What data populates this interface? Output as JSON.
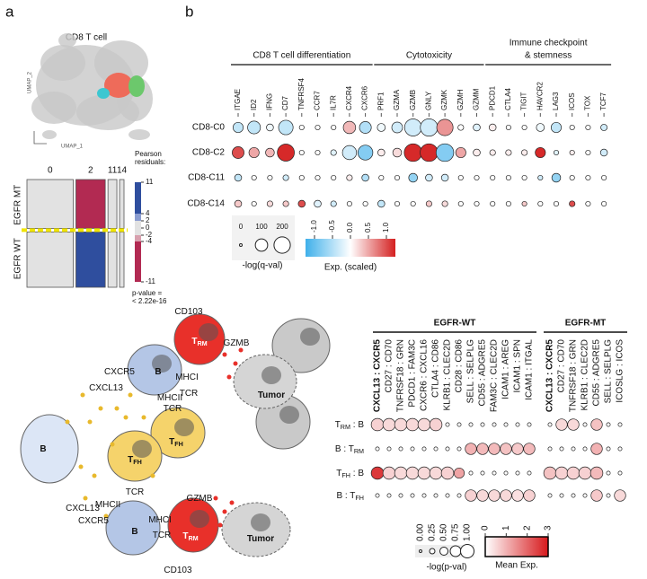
{
  "panel_a": {
    "label": "a",
    "umap": {
      "title": "CD8 T cell",
      "xlabel": "UMAP_1",
      "ylabel": "UMAP_2"
    },
    "mosaic": {
      "columns": [
        {
          "label": "0",
          "width": 0.52,
          "mt_share": 0.47,
          "residual_mt": 0,
          "residual_wt": 0
        },
        {
          "label": "2",
          "width": 0.33,
          "mt_share": 0.47,
          "residual_mt": -11,
          "residual_wt": 11
        },
        {
          "label": "11",
          "width": 0.1,
          "mt_share": 0.47,
          "residual_mt": 0,
          "residual_wt": 0
        },
        {
          "label": "14",
          "width": 0.05,
          "mt_share": 0.47,
          "residual_mt": 0,
          "residual_wt": 0
        }
      ],
      "rows": [
        "EGFR MT",
        "EGFR WT"
      ],
      "legend_title": [
        "Pearson",
        "residuals:"
      ],
      "legend_ticks": [
        11,
        4,
        2,
        0,
        -2,
        -4,
        -11
      ],
      "p_value": [
        "p-value =",
        "< 2.22e-16"
      ]
    }
  },
  "panel_b": {
    "label": "b",
    "groups": [
      {
        "title": [
          "CD8 T cell differentiation"
        ],
        "genes": [
          "ITGAE",
          "ID2",
          "IFNG",
          "CD7",
          "TNFRSF4",
          "CCR7",
          "IL7R",
          "CXCR4",
          "CXCR6"
        ]
      },
      {
        "title": [
          "Cytotoxicity"
        ],
        "genes": [
          "PRF1",
          "GZMA",
          "GZMB",
          "GNLY",
          "GZMK",
          "GZMH",
          "GZMM"
        ]
      },
      {
        "title": [
          "Immune checkpoint",
          "& stemness"
        ],
        "genes": [
          "PDCD1",
          "CTLA4",
          "TIGIT",
          "HAVCR2",
          "LAG3",
          "ICOS",
          "TOX",
          "TCF7"
        ]
      }
    ],
    "rows": [
      {
        "name": "CD8-C0",
        "size": [
          60,
          110,
          20,
          150,
          5,
          5,
          5,
          100,
          90,
          30,
          70,
          220,
          230,
          200,
          10,
          20,
          20,
          5,
          5,
          30,
          60,
          5,
          5,
          15
        ],
        "exp": [
          -0.4,
          -0.4,
          -0.1,
          -0.4,
          0,
          0,
          0,
          0.4,
          -0.5,
          -0.1,
          -0.3,
          -0.3,
          -0.3,
          0.6,
          0,
          -0.2,
          0.1,
          0,
          0,
          -0.1,
          -0.4,
          0,
          0,
          -0.3
        ]
      },
      {
        "name": "CD8-C2",
        "size": [
          90,
          60,
          40,
          220,
          5,
          5,
          10,
          140,
          160,
          20,
          40,
          240,
          240,
          240,
          60,
          20,
          10,
          10,
          10,
          60,
          5,
          5,
          5,
          20
        ],
        "exp": [
          1.0,
          0.5,
          0.4,
          1.2,
          0,
          0,
          -0.2,
          -0.3,
          -0.8,
          0.1,
          0.2,
          1.2,
          1.2,
          -0.8,
          0.5,
          0.1,
          0.1,
          0.1,
          0.1,
          1.2,
          -0.2,
          0.1,
          0,
          -0.3
        ]
      },
      {
        "name": "CD8-C11",
        "size": [
          20,
          5,
          5,
          10,
          5,
          5,
          5,
          10,
          20,
          5,
          5,
          40,
          20,
          20,
          5,
          5,
          5,
          5,
          5,
          5,
          40,
          5,
          5,
          5
        ],
        "exp": [
          -0.4,
          0,
          0,
          -0.3,
          0,
          0,
          0,
          0.1,
          -0.5,
          0,
          0,
          -0.7,
          -0.3,
          -0.3,
          0,
          0,
          0,
          0,
          0,
          -0.3,
          -0.7,
          0,
          0,
          0
        ]
      },
      {
        "name": "CD8-C14",
        "size": [
          20,
          5,
          10,
          10,
          20,
          20,
          10,
          5,
          5,
          20,
          5,
          5,
          10,
          10,
          5,
          5,
          5,
          5,
          5,
          5,
          5,
          10,
          5,
          5
        ],
        "exp": [
          0.3,
          0,
          0.2,
          0.3,
          1.0,
          -0.2,
          -0.3,
          0,
          0,
          -0.4,
          0,
          0,
          0.3,
          0.2,
          0,
          0,
          0,
          0,
          0.3,
          0,
          0,
          1.0,
          0,
          0
        ]
      }
    ],
    "size_legend": {
      "title": "-log(q-val)",
      "values": [
        0,
        100,
        200
      ],
      "lim": [
        0,
        250
      ]
    },
    "color_legend": {
      "title": "Exp. (scaled)",
      "lim": [
        -1.25,
        1.25
      ],
      "ticks": [
        {
          "value": -1,
          "label": "-1.0"
        },
        -0.5,
        {
          "value": 0,
          "label": "0.0"
        },
        0.5,
        {
          "value": 1,
          "label": "1.0"
        }
      ]
    }
  },
  "panel_c": {
    "diagram": {
      "labels": [
        [
          {
            "text": "T"
          },
          {
            "text": "RM",
            "sub": true
          }
        ],
        [
          {
            "text": "CD103"
          }
        ],
        [
          {
            "text": "GZMB"
          }
        ],
        [
          {
            "text": "B"
          }
        ],
        [
          {
            "text": "MHCI"
          }
        ],
        [
          {
            "text": "TCR"
          }
        ],
        [
          {
            "text": "CXCR5"
          }
        ],
        [
          {
            "text": "MHCII"
          }
        ],
        [
          {
            "text": "TCR"
          }
        ],
        [
          {
            "text": "CXCL13"
          }
        ],
        [
          {
            "text": "T"
          },
          {
            "text": "FH",
            "sub": true
          }
        ],
        [
          {
            "text": "Tumor"
          }
        ],
        [
          {
            "text": "B"
          }
        ],
        [
          {
            "text": "T"
          },
          {
            "text": "FH",
            "sub": true
          }
        ],
        [
          {
            "text": "CXCL13"
          }
        ],
        [
          {
            "text": "TCR"
          }
        ],
        [
          {
            "text": "MHCII"
          }
        ],
        [
          {
            "text": "CXCR5"
          }
        ],
        [
          {
            "text": "B"
          }
        ],
        [
          {
            "text": "MHCI"
          }
        ],
        [
          {
            "text": "TCR"
          }
        ],
        [
          {
            "text": "GZMB"
          }
        ],
        [
          {
            "text": "T"
          },
          {
            "text": "RM",
            "sub": true
          }
        ],
        [
          {
            "text": "CD103"
          }
        ],
        [
          {
            "text": "Tumor"
          }
        ]
      ]
    },
    "dotplot": {
      "groups": [
        {
          "title": "EGFR-WT",
          "pairs": [
            "CXCL13 : CXCR5",
            "CD27 : CD70",
            "TNFRSF18 : GRN",
            "PDCD1 : FAM3C",
            "CXCR6 : CXCL16",
            "CTLA4 : CD86",
            "KLRB1 : CLEC2D",
            "CD28 : CD86",
            "SELL : SELPLG",
            "CD55 : ADGRE5",
            "FAM3C : CLEC2D",
            "ICAM1 : AREG",
            "ICAM1 : SPN",
            "ICAM1 : ITGAL"
          ]
        },
        {
          "title": "EGFR-MT",
          "pairs": [
            "CXCL13 : CXCR5",
            "CD27 : CD70",
            "TNFRSF18 : GRN",
            "KLRB1 : CLEC2D",
            "CD55 : ADGRE5",
            "SELL : SELPLG",
            "ICOSLG : ICOS"
          ]
        }
      ],
      "rows": [
        {
          "label": [
            {
              "text": "T"
            },
            {
              "text": "RM",
              "sub": true
            },
            {
              "text": " : B"
            }
          ],
          "size": [
            0.9,
            0.9,
            0.9,
            0.9,
            0.9,
            0.9,
            0.1,
            0.1,
            0.1,
            0.1,
            0.1,
            0.1,
            0.1,
            0.1,
            0.1,
            0.8,
            0.8,
            0.1,
            0.8,
            0.1,
            0.1
          ],
          "exp": [
            0.6,
            0.5,
            0.5,
            0.5,
            0.5,
            0.6,
            0,
            0,
            0,
            0,
            0,
            0,
            0,
            0,
            0,
            0.5,
            0.5,
            0,
            0.8,
            0,
            0
          ]
        },
        {
          "label": [
            {
              "text": "B : T"
            },
            {
              "text": "RM",
              "sub": true
            }
          ],
          "size": [
            0.1,
            0.1,
            0.1,
            0.1,
            0.1,
            0.1,
            0.1,
            0.1,
            0.8,
            0.8,
            0.8,
            0.8,
            0.8,
            0.8,
            0.1,
            0.1,
            0.1,
            0.1,
            0.8,
            0.1,
            0.1
          ],
          "exp": [
            0,
            0,
            0,
            0,
            0,
            0,
            0,
            0,
            1.0,
            0.9,
            0.9,
            0.8,
            0.7,
            0.9,
            0,
            0,
            0,
            0,
            1.0,
            0,
            0
          ]
        },
        {
          "label": [
            {
              "text": "T"
            },
            {
              "text": "FH",
              "sub": true
            },
            {
              "text": " : B"
            }
          ],
          "size": [
            0.9,
            0.9,
            0.9,
            0.9,
            0.9,
            0.9,
            0.9,
            0.7,
            0.1,
            0.1,
            0.1,
            0.1,
            0.1,
            0.1,
            0.9,
            0.9,
            0.9,
            0.9,
            0.9,
            0.1,
            0.1
          ],
          "exp": [
            2.6,
            0.6,
            0.5,
            0.5,
            0.5,
            0.5,
            0.6,
            1.2,
            0,
            0,
            0,
            0,
            0,
            0,
            0.8,
            0.6,
            0.6,
            0.6,
            0.9,
            0,
            0
          ]
        },
        {
          "label": [
            {
              "text": "B : T"
            },
            {
              "text": "FH",
              "sub": true
            }
          ],
          "size": [
            0.1,
            0.1,
            0.1,
            0.1,
            0.1,
            0.1,
            0.1,
            0.1,
            0.8,
            0.8,
            0.8,
            0.8,
            0.8,
            0.8,
            0.1,
            0.1,
            0.1,
            0.1,
            0.8,
            0.1,
            0.8
          ],
          "exp": [
            0,
            0,
            0,
            0,
            0,
            0,
            0,
            0,
            0.6,
            0.5,
            0.5,
            0.5,
            0.4,
            0.6,
            0,
            0,
            0,
            0,
            0.7,
            0,
            0.5
          ]
        }
      ],
      "size_legend": {
        "title": "-log(p-val)",
        "lim": [
          0,
          1
        ],
        "values": [
          {
            "value": 0,
            "label": "0.00"
          },
          0.25,
          {
            "value": 0.5,
            "label": "0.50"
          },
          0.75,
          {
            "value": 1,
            "label": "1.00"
          }
        ]
      },
      "color_legend": {
        "title": "Mean Exp.",
        "lim": [
          0,
          3
        ],
        "ticks": [
          0,
          1,
          2,
          3
        ]
      }
    }
  }
}
